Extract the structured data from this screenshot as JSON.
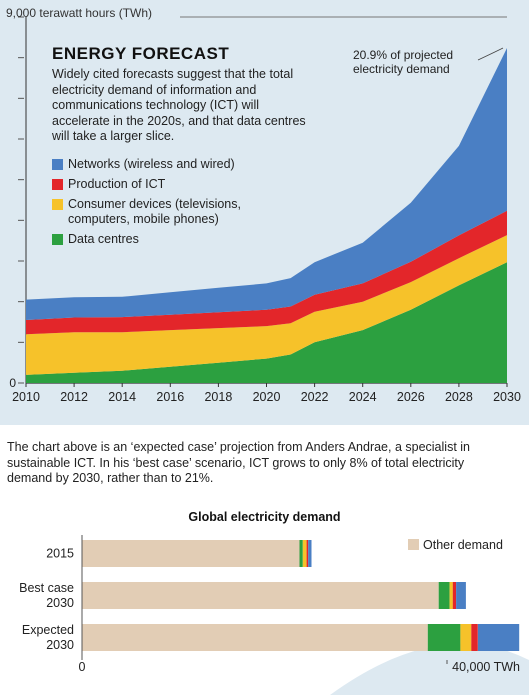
{
  "chart_data": [
    {
      "type": "area",
      "stacked": true,
      "title": "ENERGY FORECAST",
      "subtitle": "Widely cited forecasts suggest that the total electricity demand of information and communications technology (ICT) will accelerate in the 2020s, and that data centres will take a larger slice.",
      "ylabel": "9,000 terawatt hours (TWh)",
      "xlabel": "",
      "ylim": [
        0,
        9000
      ],
      "x": [
        2010,
        2012,
        2014,
        2016,
        2018,
        2020,
        2021,
        2022,
        2024,
        2026,
        2028,
        2030
      ],
      "x_ticks": [
        "2010",
        "2012",
        "2014",
        "2016",
        "2018",
        "2020",
        "2022",
        "2024",
        "2026",
        "2028",
        "2030"
      ],
      "y_ticks": [
        "0"
      ],
      "annotation": "20.9% of projected electricity demand",
      "series": [
        {
          "name": "Data centres",
          "color": "#2ca040",
          "values": [
            200,
            250,
            300,
            400,
            500,
            600,
            700,
            1000,
            1300,
            1800,
            2400,
            2967
          ]
        },
        {
          "name": "Consumer devices (televisions, computers, mobile phones)",
          "color": "#f6c22a",
          "values": [
            1000,
            1000,
            950,
            900,
            850,
            800,
            770,
            750,
            700,
            680,
            670,
            670
          ]
        },
        {
          "name": "Production of ICT",
          "color": "#e3262a",
          "values": [
            350,
            360,
            370,
            380,
            390,
            400,
            410,
            420,
            450,
            500,
            560,
            600
          ]
        },
        {
          "name": "Networks (wireless and wired)",
          "color": "#4a7fc4",
          "values": [
            500,
            500,
            500,
            550,
            600,
            650,
            700,
            800,
            1000,
            1450,
            2200,
            4000
          ]
        }
      ]
    },
    {
      "type": "bar",
      "orientation": "horizontal",
      "stacked": true,
      "title": "Global electricity demand",
      "caption": "The chart above is an ‘expected case’ projection from Anders Andrae, a specialist in sustainable ICT. In his ‘best case’ scenario, ICT grows to only 8% of total electricity demand by 2030, rather than to 21%.",
      "categories": [
        [
          "2015"
        ],
        [
          "Best case",
          "2030"
        ],
        [
          "Expected",
          "2030"
        ]
      ],
      "xlim": [
        0,
        40000
      ],
      "x_tick_labels": [
        "0",
        "40,000 TWh"
      ],
      "legend": [
        "Other demand"
      ],
      "series": [
        {
          "name": "Other demand",
          "color": "#e2cdb5",
          "values": [
            20000,
            32800,
            31800
          ]
        },
        {
          "name": "Data centres",
          "color": "#2ca040",
          "values": [
            300,
            1000,
            3000
          ]
        },
        {
          "name": "Consumer devices",
          "color": "#f6c22a",
          "values": [
            350,
            300,
            1000
          ]
        },
        {
          "name": "Production of ICT",
          "color": "#e3262a",
          "values": [
            150,
            300,
            600
          ]
        },
        {
          "name": "Networks",
          "color": "#4a7fc4",
          "values": [
            300,
            900,
            3800
          ]
        }
      ]
    }
  ]
}
